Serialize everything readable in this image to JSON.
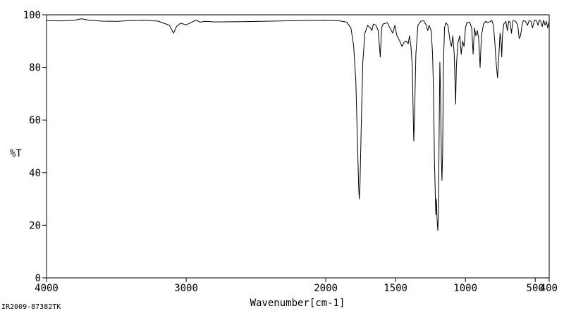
{
  "chart_data": {
    "type": "line",
    "title": "",
    "xlabel": "Wavenumber[cm-1]",
    "ylabel": "%T",
    "xlim": [
      4000,
      400
    ],
    "ylim": [
      0,
      100
    ],
    "x_reversed": true,
    "grid": false,
    "x_ticks": [
      {
        "value": 4000,
        "label": "4000"
      },
      {
        "value": 3000,
        "label": "3000"
      },
      {
        "value": 2000,
        "label": "2000"
      },
      {
        "value": 1500,
        "label": "1500"
      },
      {
        "value": 1000,
        "label": "1000"
      },
      {
        "value": 500,
        "label": "500"
      },
      {
        "value": 400,
        "label": "400"
      }
    ],
    "y_ticks": [
      {
        "value": 0,
        "label": "0"
      },
      {
        "value": 20,
        "label": "20"
      },
      {
        "value": 40,
        "label": "40"
      },
      {
        "value": 60,
        "label": "60"
      },
      {
        "value": 80,
        "label": "80"
      },
      {
        "value": 100,
        "label": "100"
      }
    ],
    "series": [
      {
        "points": [
          [
            4000,
            97.8
          ],
          [
            3900,
            97.7
          ],
          [
            3800,
            97.9
          ],
          [
            3750,
            98.5
          ],
          [
            3700,
            98.0
          ],
          [
            3600,
            97.6
          ],
          [
            3500,
            97.5
          ],
          [
            3400,
            97.8
          ],
          [
            3300,
            97.9
          ],
          [
            3200,
            97.6
          ],
          [
            3120,
            96.0
          ],
          [
            3090,
            93.0
          ],
          [
            3070,
            95.5
          ],
          [
            3040,
            96.8
          ],
          [
            3000,
            96.2
          ],
          [
            2960,
            97.2
          ],
          [
            2930,
            98.0
          ],
          [
            2900,
            97.2
          ],
          [
            2860,
            97.5
          ],
          [
            2800,
            97.3
          ],
          [
            2600,
            97.4
          ],
          [
            2400,
            97.6
          ],
          [
            2200,
            97.8
          ],
          [
            2000,
            97.9
          ],
          [
            1900,
            97.7
          ],
          [
            1850,
            97.2
          ],
          [
            1820,
            95.0
          ],
          [
            1800,
            88.0
          ],
          [
            1785,
            75.0
          ],
          [
            1775,
            55.0
          ],
          [
            1765,
            35.0
          ],
          [
            1760,
            30.0
          ],
          [
            1755,
            35.0
          ],
          [
            1745,
            60.0
          ],
          [
            1735,
            82.0
          ],
          [
            1720,
            93.0
          ],
          [
            1700,
            96.0
          ],
          [
            1680,
            95.0
          ],
          [
            1670,
            94.0
          ],
          [
            1660,
            96.5
          ],
          [
            1640,
            96.0
          ],
          [
            1625,
            94.0
          ],
          [
            1610,
            84.0
          ],
          [
            1600,
            95.0
          ],
          [
            1590,
            96.5
          ],
          [
            1560,
            97.0
          ],
          [
            1540,
            95.0
          ],
          [
            1520,
            93.0
          ],
          [
            1505,
            96.0
          ],
          [
            1490,
            92.0
          ],
          [
            1470,
            90.0
          ],
          [
            1455,
            88.0
          ],
          [
            1440,
            89.5
          ],
          [
            1425,
            90.0
          ],
          [
            1410,
            89.0
          ],
          [
            1400,
            92.0
          ],
          [
            1390,
            88.0
          ],
          [
            1380,
            80.0
          ],
          [
            1375,
            65.0
          ],
          [
            1370,
            52.0
          ],
          [
            1365,
            60.0
          ],
          [
            1355,
            85.0
          ],
          [
            1340,
            96.0
          ],
          [
            1320,
            97.5
          ],
          [
            1300,
            97.8
          ],
          [
            1280,
            96.0
          ],
          [
            1270,
            94.0
          ],
          [
            1260,
            96.0
          ],
          [
            1245,
            94.0
          ],
          [
            1235,
            85.0
          ],
          [
            1228,
            70.0
          ],
          [
            1222,
            45.0
          ],
          [
            1215,
            30.0
          ],
          [
            1212,
            24.0
          ],
          [
            1208,
            30.0
          ],
          [
            1203,
            22.0
          ],
          [
            1198,
            18.0
          ],
          [
            1193,
            25.0
          ],
          [
            1188,
            55.0
          ],
          [
            1183,
            82.0
          ],
          [
            1178,
            70.0
          ],
          [
            1172,
            45.0
          ],
          [
            1168,
            37.0
          ],
          [
            1163,
            48.0
          ],
          [
            1158,
            80.0
          ],
          [
            1150,
            95.0
          ],
          [
            1140,
            97.0
          ],
          [
            1125,
            96.0
          ],
          [
            1110,
            90.0
          ],
          [
            1100,
            88.0
          ],
          [
            1090,
            92.0
          ],
          [
            1080,
            85.0
          ],
          [
            1070,
            66.0
          ],
          [
            1065,
            80.0
          ],
          [
            1055,
            89.0
          ],
          [
            1040,
            92.0
          ],
          [
            1030,
            85.0
          ],
          [
            1020,
            90.0
          ],
          [
            1010,
            88.0
          ],
          [
            1000,
            95.0
          ],
          [
            990,
            97.0
          ],
          [
            970,
            97.2
          ],
          [
            955,
            95.0
          ],
          [
            945,
            85.0
          ],
          [
            935,
            95.0
          ],
          [
            925,
            92.0
          ],
          [
            915,
            94.0
          ],
          [
            905,
            91.0
          ],
          [
            895,
            80.0
          ],
          [
            885,
            92.0
          ],
          [
            870,
            96.5
          ],
          [
            855,
            97.5
          ],
          [
            840,
            97.0
          ],
          [
            820,
            97.5
          ],
          [
            810,
            97.8
          ],
          [
            800,
            96.0
          ],
          [
            790,
            90.0
          ],
          [
            780,
            82.0
          ],
          [
            770,
            76.0
          ],
          [
            760,
            85.0
          ],
          [
            752,
            93.0
          ],
          [
            745,
            90.0
          ],
          [
            740,
            84.0
          ],
          [
            735,
            92.0
          ],
          [
            725,
            96.5
          ],
          [
            710,
            97.5
          ],
          [
            700,
            94.0
          ],
          [
            690,
            97.5
          ],
          [
            680,
            97.3
          ],
          [
            670,
            93.0
          ],
          [
            660,
            97.8
          ],
          [
            640,
            97.5
          ],
          [
            625,
            96.0
          ],
          [
            615,
            91.0
          ],
          [
            605,
            92.0
          ],
          [
            595,
            96.0
          ],
          [
            585,
            97.8
          ],
          [
            570,
            97.5
          ],
          [
            555,
            96.0
          ],
          [
            545,
            97.8
          ],
          [
            530,
            97.5
          ],
          [
            520,
            95.0
          ],
          [
            505,
            98.0
          ],
          [
            490,
            97.7
          ],
          [
            480,
            96.0
          ],
          [
            470,
            98.0
          ],
          [
            460,
            97.5
          ],
          [
            450,
            95.5
          ],
          [
            440,
            98.0
          ],
          [
            430,
            96.0
          ],
          [
            420,
            97.5
          ],
          [
            410,
            95.0
          ],
          [
            400,
            97.8
          ]
        ]
      }
    ]
  },
  "footer_text": "IR2009-87382TK",
  "colors": {
    "line": "#000000",
    "axis": "#000000",
    "background": "#ffffff"
  }
}
